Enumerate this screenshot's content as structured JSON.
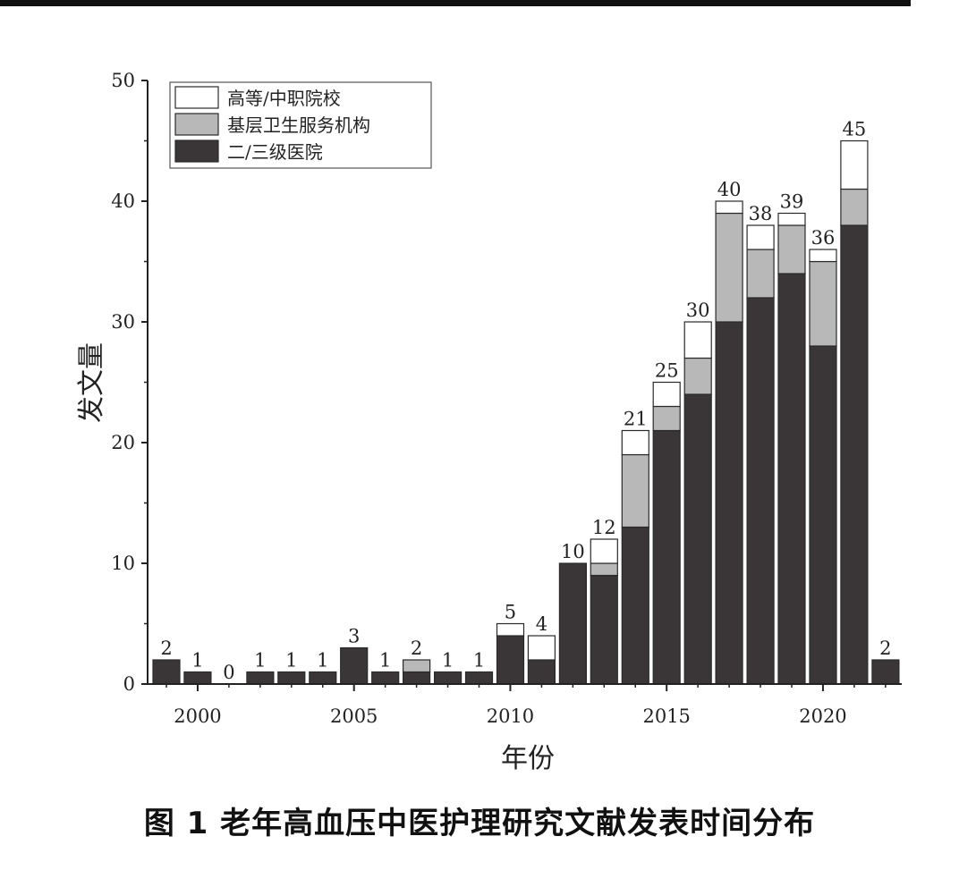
{
  "caption": "图 1  老年高血压中医护理研究文献发表时间分布",
  "chart_data": {
    "type": "bar",
    "stacked": true,
    "xlabel": "年份",
    "ylabel": "发文量",
    "ylim": [
      0,
      50
    ],
    "yticks": [
      0,
      10,
      20,
      30,
      40,
      50
    ],
    "xticks": [
      2000,
      2005,
      2010,
      2015,
      2020
    ],
    "legend_position": "top-left",
    "categories": [
      1999,
      2000,
      2001,
      2002,
      2003,
      2004,
      2005,
      2006,
      2007,
      2008,
      2009,
      2010,
      2011,
      2012,
      2013,
      2014,
      2015,
      2016,
      2017,
      2018,
      2019,
      2020,
      2021,
      2022
    ],
    "totals": [
      2,
      1,
      0,
      1,
      1,
      1,
      3,
      1,
      2,
      1,
      1,
      5,
      4,
      10,
      12,
      21,
      25,
      30,
      40,
      38,
      39,
      36,
      45,
      2
    ],
    "series": [
      {
        "name": "二/三级医院",
        "color": "#3a3536",
        "values": [
          2,
          1,
          0,
          1,
          1,
          1,
          3,
          1,
          1,
          1,
          1,
          4,
          2,
          10,
          9,
          13,
          21,
          24,
          30,
          32,
          34,
          28,
          38,
          2
        ]
      },
      {
        "name": "基层卫生服务机构",
        "color": "#b8b8b8",
        "values": [
          0,
          0,
          0,
          0,
          0,
          0,
          0,
          0,
          1,
          0,
          0,
          0,
          0,
          0,
          1,
          6,
          2,
          3,
          9,
          4,
          4,
          7,
          3,
          0
        ]
      },
      {
        "name": "高等/中职院校",
        "color": "#ffffff",
        "values": [
          0,
          0,
          0,
          0,
          0,
          0,
          0,
          0,
          0,
          0,
          0,
          1,
          2,
          0,
          2,
          2,
          2,
          3,
          1,
          2,
          1,
          1,
          4,
          0
        ]
      }
    ],
    "legend_order": [
      "高等/中职院校",
      "基层卫生服务机构",
      "二/三级医院"
    ]
  }
}
